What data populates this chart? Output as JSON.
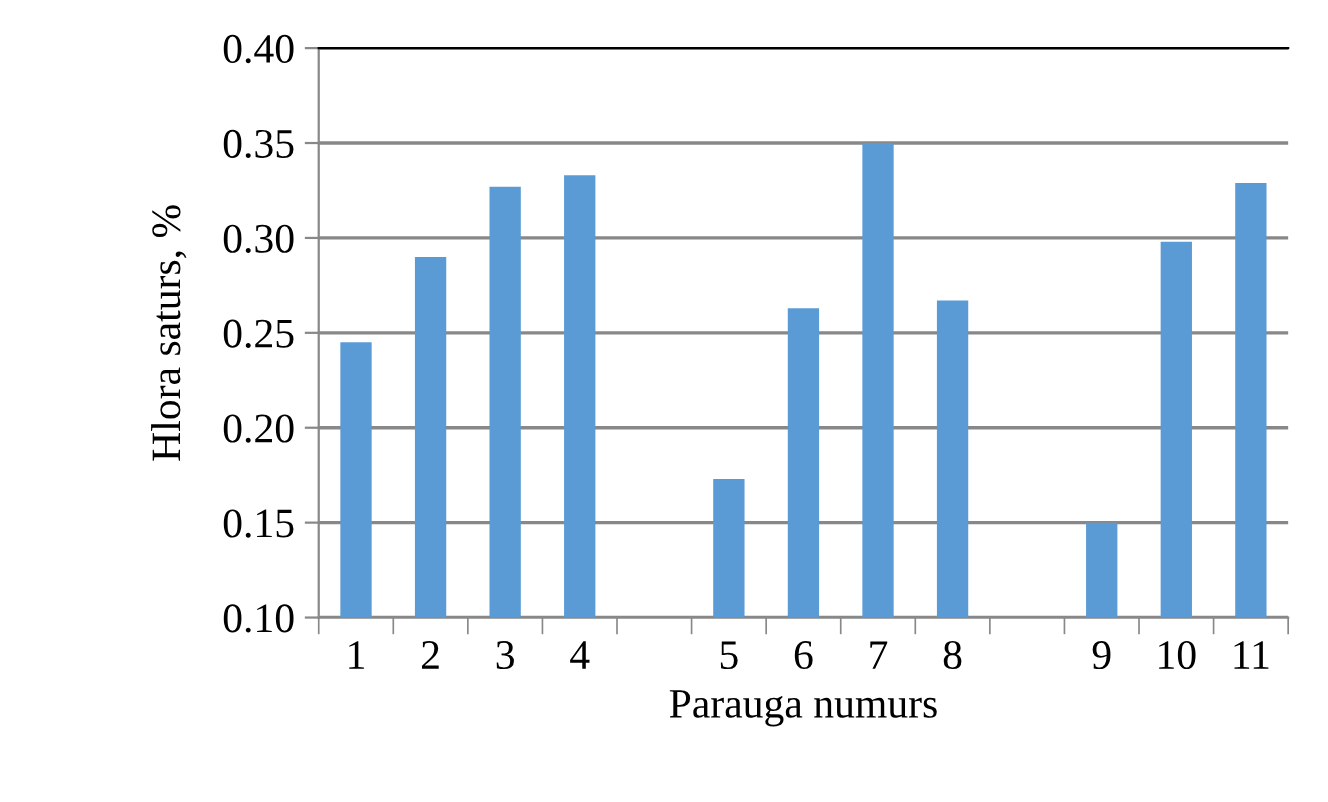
{
  "chart_data": {
    "type": "bar",
    "xlabel": "Parauga numurs",
    "ylabel": "Hlora saturs, %",
    "categories": [
      "1",
      "2",
      "3",
      "4",
      null,
      "5",
      "6",
      "7",
      "8",
      null,
      "9",
      "10",
      "11"
    ],
    "values": [
      0.245,
      0.29,
      0.327,
      0.333,
      null,
      0.173,
      0.263,
      0.35,
      0.267,
      null,
      0.15,
      0.298,
      0.329
    ],
    "color": "#5b9bd5",
    "ylim": [
      0.1,
      0.4
    ],
    "yticks": [
      {
        "value": 0.1,
        "label": "0.10"
      },
      {
        "value": 0.15,
        "label": "0.15"
      },
      {
        "value": 0.2,
        "label": "0.20"
      },
      {
        "value": 0.25,
        "label": "0.25"
      },
      {
        "value": 0.3,
        "label": "0.30"
      },
      {
        "value": 0.35,
        "label": "0.35"
      },
      {
        "value": 0.4,
        "label": "0.40"
      }
    ],
    "grid": "y"
  }
}
